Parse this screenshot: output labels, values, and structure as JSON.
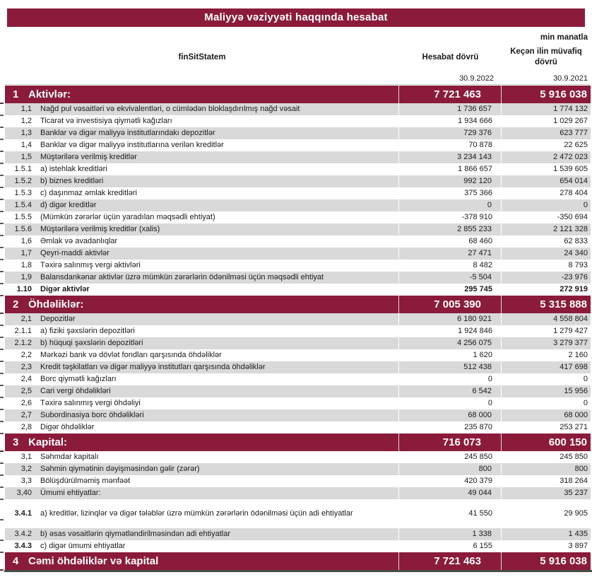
{
  "title": "Maliyyə vəziyyəti haqqında hesabat",
  "unit_note": "min manatla",
  "header": {
    "item_column": "finSitStatem",
    "current_period": "Hesabat dövrü",
    "prior_period": "Keçən ilin müvafiq dövrü",
    "current_date": "30.9.2022",
    "prior_date": "30.9.2021"
  },
  "colors": {
    "maroon": "#8B1B3B",
    "row_shade": "#D9D9D9"
  },
  "rows": [
    {
      "type": "section",
      "id": "1",
      "label": "Aktivlər:",
      "v1": "7 721 463",
      "v2": "5 916 038"
    },
    {
      "type": "data",
      "id": "1,1",
      "label": "Nağd pul vəsaitləri və  ekvivalentləri, o cümlədən bloklaşdırılmış nağd vəsait",
      "v1": "1 736 657",
      "v2": "1 774 132",
      "shade": true
    },
    {
      "type": "data",
      "id": "1,2",
      "label": "Ticarət və investisiya qiymətli kağızları",
      "v1": "1 934 666",
      "v2": "1 029 267"
    },
    {
      "type": "data",
      "id": "1,3",
      "label": "Banklar və digər maliyyə institutlarındakı depozitlər",
      "v1": "729 376",
      "v2": "623 777",
      "shade": true
    },
    {
      "type": "data",
      "id": "1,4",
      "label": "Banklar və digər maliyyə institutlarına verilən kreditlər",
      "v1": "70 878",
      "v2": "22 625"
    },
    {
      "type": "data",
      "id": "1,5",
      "label": "Müştərilərə verilmiş kreditlər",
      "v1": "3 234 143",
      "v2": "2 472 023",
      "shade": true
    },
    {
      "type": "data",
      "id": "1.5.1",
      "label": "a) istehlak kreditləri",
      "v1": "1 866 657",
      "v2": "1 539 605"
    },
    {
      "type": "data",
      "id": "1.5.2",
      "label": "b) biznes kreditləri",
      "v1": "992 120",
      "v2": "654 014",
      "shade": true
    },
    {
      "type": "data",
      "id": "1.5.3",
      "label": "c) daşınmaz əmlak kreditləri",
      "v1": "375 366",
      "v2": "278 404"
    },
    {
      "type": "data",
      "id": "1.5.4",
      "label": "d) digər kreditlər",
      "v1": "0",
      "v2": "0",
      "shade": true
    },
    {
      "type": "data",
      "id": "1.5.5",
      "label": "(Mümkün zərərlər üçün yaradılan məqsədli ehtiyat)",
      "v1": "-378 910",
      "v2": "-350 694"
    },
    {
      "type": "data",
      "id": "1.5.6",
      "label": "Müştərilərə verilmiş kreditlər (xalis)",
      "v1": "2 855 233",
      "v2": "2 121 328",
      "shade": true
    },
    {
      "type": "data",
      "id": "1,6",
      "label": "Əmlak və avadanlıqlar",
      "v1": "68 460",
      "v2": "62 833"
    },
    {
      "type": "data",
      "id": "1,7",
      "label": "Qeyri-maddi aktivlər",
      "v1": "27 471",
      "v2": "24 340",
      "shade": true
    },
    {
      "type": "data",
      "id": "1,8",
      "label": "Təxirə salınmış vergi aktivləri",
      "v1": "8 482",
      "v2": "8 793"
    },
    {
      "type": "data",
      "id": "1,9",
      "label": "Balansdankənar aktivlər üzrə mümkün zərərlərin ödənilməsi üçün məqsədli ehtiyat",
      "v1": "-5 504",
      "v2": "-23 976",
      "shade": true
    },
    {
      "type": "data",
      "id": "1.10",
      "label": "Digər aktivlər",
      "v1": "295 745",
      "v2": "272 919",
      "bold": true
    },
    {
      "type": "section",
      "id": "2",
      "label": "Öhdəliklər:",
      "v1": "7 005 390",
      "v2": "5 315 888"
    },
    {
      "type": "data",
      "id": "2,1",
      "label": "Depozitlər",
      "v1": "6 180 921",
      "v2": "4 558 804",
      "shade": true
    },
    {
      "type": "data",
      "id": "2.1.1",
      "label": "a) fiziki şəxslərin depozitləri",
      "v1": "1 924 846",
      "v2": "1 279 427"
    },
    {
      "type": "data",
      "id": "2.1.2",
      "label": "b) hüquqi şəxslərin depozitləri",
      "v1": "4 256 075",
      "v2": "3 279 377",
      "shade": true
    },
    {
      "type": "data",
      "id": "2,2",
      "label": "Mərkəzi bank və dövlət fondları qarşısında öhdəliklər",
      "v1": "1 620",
      "v2": "2 160"
    },
    {
      "type": "data",
      "id": "2,3",
      "label": "Kredit təşkilatları və digər maliyyə institutları qarşısında öhdəliklər",
      "v1": "512 438",
      "v2": "417 698",
      "shade": true
    },
    {
      "type": "data",
      "id": "2,4",
      "label": "Borc qiymətli kağızları",
      "v1": "0",
      "v2": "0"
    },
    {
      "type": "data",
      "id": "2,5",
      "label": "Cari vergi öhdəlikləri",
      "v1": "6 542",
      "v2": "15 956",
      "shade": true
    },
    {
      "type": "data",
      "id": "2,6",
      "label": "Təxirə salınmış vergi öhdəliyi",
      "v1": "0",
      "v2": "0"
    },
    {
      "type": "data",
      "id": "2,7",
      "label": "Subordinasiya borc öhdəlikləri",
      "v1": "68 000",
      "v2": "68 000",
      "shade": true
    },
    {
      "type": "data",
      "id": "2,8",
      "label": "Digər öhdəliklər",
      "v1": "235 870",
      "v2": "253 271"
    },
    {
      "type": "section",
      "id": "3",
      "label": "Kapital:",
      "v1": "716 073",
      "v2": "600 150"
    },
    {
      "type": "data",
      "id": "3,1",
      "label": "Səhmdar kapitalı",
      "v1": "245 850",
      "v2": "245 850"
    },
    {
      "type": "data",
      "id": "3,2",
      "label": "Səhmin qiymətinin dəyişməsindən gəlir (zərər)",
      "v1": "800",
      "v2": "800",
      "shade": true
    },
    {
      "type": "data",
      "id": "3,3",
      "label": "Bölüşdürülməmiş mənfəət",
      "v1": "420 379",
      "v2": "318 264"
    },
    {
      "type": "data",
      "id": "3,40",
      "label": "Ümumi ehtiyatlar:",
      "v1": "49 044",
      "v2": "35 237",
      "shade": true
    },
    {
      "type": "data",
      "id": "3.4.1",
      "label": "a) kreditlər, lizinqlər və digər tələblər üzrə mümkün zərərlərin ödənilməsi üçün adi ehtiyatlar",
      "v1": "41 550",
      "v2": "29 905",
      "bold_id": true,
      "spaced": true
    },
    {
      "type": "data",
      "id": "3.4.2",
      "label": "b) əsas vəsaitlərin qiymətləndirilməsindən adi ehtiyatlar",
      "v1": "1 338",
      "v2": "1 435",
      "shade": true
    },
    {
      "type": "data",
      "id": "3.4.3",
      "label": "c) digər ümumi ehtiyatlar",
      "v1": "6 155",
      "v2": "3 897",
      "bold_id": true
    },
    {
      "type": "section",
      "id": "4",
      "label": "Cəmi öhdəliklər və kapital",
      "v1": "7 721 463",
      "v2": "5 916 038"
    }
  ]
}
